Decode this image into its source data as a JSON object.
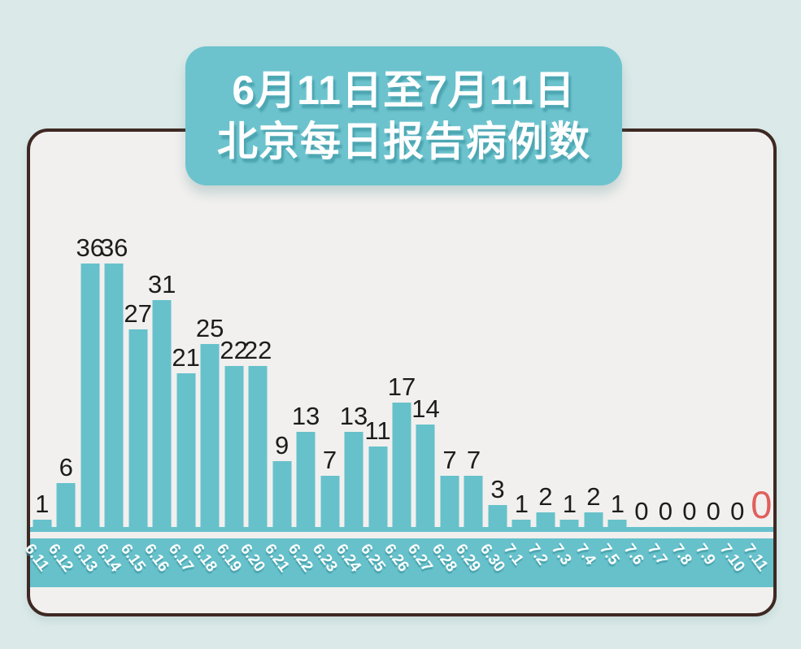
{
  "page": {
    "background_color": "#dbeae9",
    "card_background": "#f1f0ee",
    "card_border_color": "#3e2823"
  },
  "title": {
    "line1": "6月11日至7月11日",
    "line2": "北京每日报告病例数",
    "box_color": "#6cc3cd",
    "text_color": "#ffffff"
  },
  "chart_data": {
    "type": "bar",
    "title": "6月11日至7月11日 北京每日报告病例数",
    "xlabel": "",
    "ylabel": "",
    "ylim": [
      0,
      36
    ],
    "grid": "off",
    "legend": "none",
    "categories": [
      "6.11",
      "6.12",
      "6.13",
      "6.14",
      "6.15",
      "6.16",
      "6.17",
      "6.18",
      "6.19",
      "6.20",
      "6.21",
      "6.22",
      "6.23",
      "6.24",
      "6.25",
      "6.26",
      "6.27",
      "6.28",
      "6.29",
      "6.30",
      "7.1",
      "7.2",
      "7.3",
      "7.4",
      "7.5",
      "7.6",
      "7.7",
      "7.8",
      "7.9",
      "7.10",
      "7.11"
    ],
    "values": [
      1,
      6,
      36,
      36,
      27,
      31,
      21,
      25,
      22,
      22,
      9,
      13,
      7,
      13,
      11,
      17,
      14,
      7,
      7,
      3,
      1,
      2,
      1,
      2,
      1,
      0,
      0,
      0,
      0,
      0,
      0
    ],
    "bar_color": "#66c1cb",
    "value_label_color": "#1c1c1c",
    "axis_band_color": "#66c1cb",
    "tick_label_color": "#ffffff",
    "highlight_index": 30,
    "highlight_color": "#e05f5d"
  }
}
